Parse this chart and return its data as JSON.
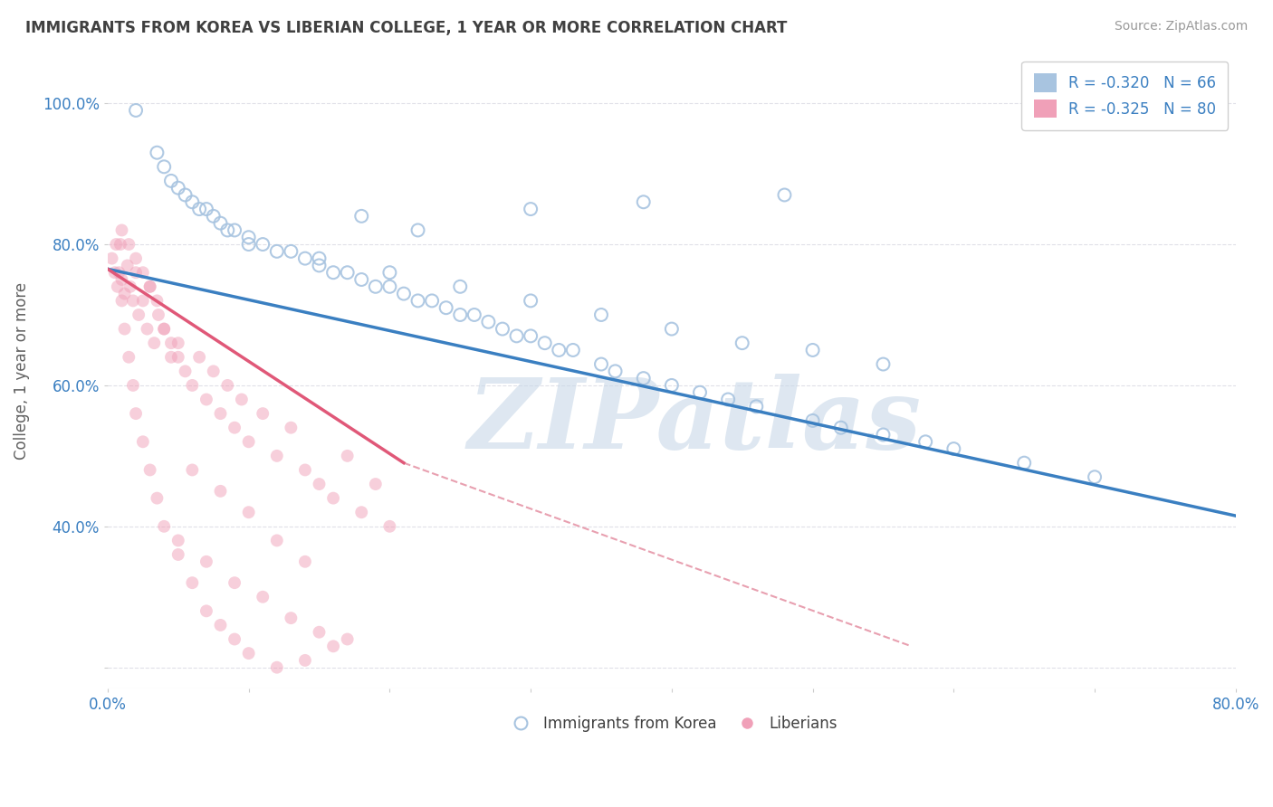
{
  "title": "IMMIGRANTS FROM KOREA VS LIBERIAN COLLEGE, 1 YEAR OR MORE CORRELATION CHART",
  "source_text": "Source: ZipAtlas.com",
  "ylabel": "College, 1 year or more",
  "xlim": [
    0.0,
    0.8
  ],
  "ylim": [
    0.17,
    1.07
  ],
  "xticks": [
    0.0,
    0.1,
    0.2,
    0.3,
    0.4,
    0.5,
    0.6,
    0.7,
    0.8
  ],
  "xticklabels": [
    "0.0%",
    "",
    "",
    "",
    "",
    "",
    "",
    "",
    "80.0%"
  ],
  "yticks": [
    0.2,
    0.4,
    0.6,
    0.8,
    1.0
  ],
  "yticklabels": [
    "",
    "40.0%",
    "60.0%",
    "80.0%",
    "100.0%"
  ],
  "legend_blue_label": "R = -0.320   N = 66",
  "legend_pink_label": "R = -0.325   N = 80",
  "scatter_blue_color": "#a8c4e0",
  "scatter_pink_color": "#f0a0b8",
  "line_blue_color": "#3a7fc1",
  "line_pink_color": "#e05878",
  "line_dashed_color": "#e8a0b0",
  "watermark_text": "ZIPatlas",
  "watermark_color": "#c8d8e8",
  "legend_label_blue": "Immigrants from Korea",
  "legend_label_pink": "Liberians",
  "blue_scatter_x": [
    0.02,
    0.035,
    0.04,
    0.045,
    0.05,
    0.055,
    0.06,
    0.065,
    0.07,
    0.075,
    0.08,
    0.085,
    0.09,
    0.1,
    0.11,
    0.12,
    0.13,
    0.14,
    0.15,
    0.16,
    0.17,
    0.18,
    0.19,
    0.2,
    0.21,
    0.22,
    0.23,
    0.24,
    0.25,
    0.26,
    0.27,
    0.28,
    0.29,
    0.3,
    0.31,
    0.32,
    0.33,
    0.35,
    0.36,
    0.38,
    0.4,
    0.42,
    0.44,
    0.46,
    0.5,
    0.52,
    0.55,
    0.58,
    0.6,
    0.65,
    0.7,
    0.1,
    0.15,
    0.2,
    0.25,
    0.3,
    0.35,
    0.4,
    0.45,
    0.5,
    0.55,
    0.22,
    0.18,
    0.3,
    0.38,
    0.48
  ],
  "blue_scatter_y": [
    0.99,
    0.93,
    0.91,
    0.89,
    0.88,
    0.87,
    0.86,
    0.85,
    0.85,
    0.84,
    0.83,
    0.82,
    0.82,
    0.81,
    0.8,
    0.79,
    0.79,
    0.78,
    0.77,
    0.76,
    0.76,
    0.75,
    0.74,
    0.74,
    0.73,
    0.72,
    0.72,
    0.71,
    0.7,
    0.7,
    0.69,
    0.68,
    0.67,
    0.67,
    0.66,
    0.65,
    0.65,
    0.63,
    0.62,
    0.61,
    0.6,
    0.59,
    0.58,
    0.57,
    0.55,
    0.54,
    0.53,
    0.52,
    0.51,
    0.49,
    0.47,
    0.8,
    0.78,
    0.76,
    0.74,
    0.72,
    0.7,
    0.68,
    0.66,
    0.65,
    0.63,
    0.82,
    0.84,
    0.85,
    0.86,
    0.87
  ],
  "pink_scatter_x": [
    0.003,
    0.005,
    0.007,
    0.009,
    0.01,
    0.012,
    0.014,
    0.016,
    0.018,
    0.02,
    0.022,
    0.025,
    0.028,
    0.03,
    0.033,
    0.036,
    0.04,
    0.045,
    0.05,
    0.055,
    0.06,
    0.065,
    0.07,
    0.075,
    0.08,
    0.085,
    0.09,
    0.095,
    0.1,
    0.11,
    0.12,
    0.13,
    0.14,
    0.15,
    0.16,
    0.17,
    0.18,
    0.19,
    0.2,
    0.01,
    0.015,
    0.02,
    0.025,
    0.03,
    0.035,
    0.04,
    0.045,
    0.05,
    0.006,
    0.008,
    0.01,
    0.012,
    0.015,
    0.018,
    0.02,
    0.025,
    0.03,
    0.035,
    0.04,
    0.05,
    0.06,
    0.07,
    0.08,
    0.09,
    0.1,
    0.12,
    0.14,
    0.16,
    0.05,
    0.07,
    0.09,
    0.11,
    0.13,
    0.15,
    0.17,
    0.12,
    0.14,
    0.1,
    0.08,
    0.06
  ],
  "pink_scatter_y": [
    0.78,
    0.76,
    0.74,
    0.8,
    0.75,
    0.73,
    0.77,
    0.74,
    0.72,
    0.76,
    0.7,
    0.72,
    0.68,
    0.74,
    0.66,
    0.7,
    0.68,
    0.64,
    0.66,
    0.62,
    0.6,
    0.64,
    0.58,
    0.62,
    0.56,
    0.6,
    0.54,
    0.58,
    0.52,
    0.56,
    0.5,
    0.54,
    0.48,
    0.46,
    0.44,
    0.5,
    0.42,
    0.46,
    0.4,
    0.82,
    0.8,
    0.78,
    0.76,
    0.74,
    0.72,
    0.68,
    0.66,
    0.64,
    0.8,
    0.76,
    0.72,
    0.68,
    0.64,
    0.6,
    0.56,
    0.52,
    0.48,
    0.44,
    0.4,
    0.36,
    0.32,
    0.28,
    0.26,
    0.24,
    0.22,
    0.2,
    0.21,
    0.23,
    0.38,
    0.35,
    0.32,
    0.3,
    0.27,
    0.25,
    0.24,
    0.38,
    0.35,
    0.42,
    0.45,
    0.48
  ],
  "blue_line_x0": 0.0,
  "blue_line_x1": 0.8,
  "blue_line_y0": 0.765,
  "blue_line_y1": 0.415,
  "pink_line_x0": 0.0,
  "pink_line_x1": 0.21,
  "pink_line_y0": 0.765,
  "pink_line_y1": 0.49,
  "dashed_line_x0": 0.21,
  "dashed_line_x1": 0.57,
  "dashed_line_y0": 0.49,
  "dashed_line_y1": 0.23,
  "background_color": "#ffffff",
  "grid_color": "#e0e0e8",
  "title_color": "#404040",
  "axis_label_color": "#606060",
  "tick_label_color": "#3a7fc1"
}
